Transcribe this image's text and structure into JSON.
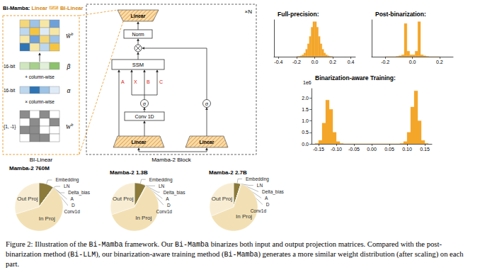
{
  "bi_linear": {
    "header": {
      "prefix": "Bi-Mamba:",
      "source": "Linear",
      "target": "BI-Linear"
    },
    "scaled_weight": {
      "symbol": "W̃",
      "superscript": "b"
    },
    "beta": {
      "precision": "16-bit",
      "symbol": "β",
      "operation": "+ column-wise"
    },
    "alpha": {
      "precision": "16-bit",
      "symbol": "α",
      "operation": "× column-wise"
    },
    "binary_weight": {
      "values_label": "{1, -1}",
      "symbol": "W",
      "superscript": "b",
      "matrix": [
        [
          1,
          -1,
          1,
          -1
        ],
        [
          -1,
          1,
          -1,
          1
        ],
        [
          1,
          1,
          -1,
          -1
        ],
        [
          -1,
          1,
          1,
          -1
        ]
      ]
    },
    "label": "BI-Linear"
  },
  "mamba_block": {
    "out_linear": "Linear",
    "norm": "Norm",
    "ssm": "SSM",
    "conv": "Conv 1D",
    "conv_activation": "σ",
    "gate_activation": "σ",
    "ssm_inputs": [
      "A",
      "X",
      "B",
      "C"
    ],
    "in_linear": "Linear",
    "gate_linear": "Linear",
    "repeat": "×N",
    "label": "Mamba-2 Block"
  },
  "chart_data": [
    {
      "type": "pie",
      "title": "Mamba-2 760M",
      "categories": [
        "Embedding",
        "LN",
        "Delta_bias",
        "A",
        "D",
        "Conv1d",
        "In Proj",
        "Out Proj"
      ],
      "values": [
        10.1,
        0.1,
        0.02,
        0.02,
        0.02,
        0.4,
        59.6,
        29.7
      ],
      "colors": [
        "#8b7a3a",
        "#b5a35c",
        "#c9b56c",
        "#d8c48a",
        "#e0cf9c",
        "#a89450",
        "#f2e0b4",
        "#f8edd2"
      ]
    },
    {
      "type": "pie",
      "title": "Mamba-2 1.3B",
      "categories": [
        "Embedding",
        "LN",
        "Delta_bias",
        "A",
        "D",
        "Conv1d",
        "In Proj",
        "Out Proj"
      ],
      "values": [
        7.8,
        0.1,
        0.02,
        0.02,
        0.02,
        0.3,
        61.5,
        30.2
      ],
      "colors": [
        "#8b7a3a",
        "#b5a35c",
        "#c9b56c",
        "#d8c48a",
        "#e0cf9c",
        "#a89450",
        "#f2e0b4",
        "#f8edd2"
      ]
    },
    {
      "type": "pie",
      "title": "Mamba-2 2.7B",
      "categories": [
        "Embedding",
        "LN",
        "Delta_bias",
        "A",
        "D",
        "Conv1d",
        "In Proj",
        "Out Proj"
      ],
      "values": [
        4.8,
        0.1,
        0.02,
        0.02,
        0.02,
        0.3,
        63.5,
        31.2
      ],
      "colors": [
        "#8b7a3a",
        "#b5a35c",
        "#c9b56c",
        "#d8c48a",
        "#e0cf9c",
        "#a89450",
        "#f2e0b4",
        "#f8edd2"
      ]
    },
    {
      "type": "histogram",
      "title": "Full-precision:",
      "bins": [
        -0.2,
        -0.18,
        -0.16,
        -0.14,
        -0.12,
        -0.1,
        -0.08,
        -0.06,
        -0.04,
        -0.02,
        0,
        0.02,
        0.04,
        0.06,
        0.08,
        0.1,
        0.12,
        0.14,
        0.16,
        0.18,
        0.2
      ],
      "values": [
        0.01,
        0.02,
        0.05,
        0.1,
        0.2,
        0.4,
        0.7,
        1.1,
        1.6,
        1.9,
        1.9,
        1.6,
        1.1,
        0.7,
        0.4,
        0.2,
        0.1,
        0.05,
        0.02,
        0.01
      ],
      "color": "#f4a62a",
      "xlim": [
        -0.45,
        0.45
      ],
      "xticks": [
        -0.4,
        -0.2,
        {
          "value": 0,
          "label": "0.0"
        },
        0.2,
        0.4
      ],
      "ylim": [
        0,
        2
      ],
      "grid": false,
      "tick_labels": "x"
    },
    {
      "type": "histogram",
      "title": "Post-binarization:",
      "bins": [
        -0.2,
        -0.18,
        -0.16,
        -0.14,
        -0.12,
        -0.1,
        -0.08,
        -0.06,
        -0.04,
        -0.02,
        0,
        0.02,
        0.04,
        0.06,
        0.08,
        0.1,
        0.12,
        0.14,
        0.16,
        0.18,
        0.2
      ],
      "values": [
        0,
        0,
        0,
        0,
        0.02,
        0.05,
        0.1,
        1.8,
        0.3,
        0.1,
        0.1,
        0.3,
        1.9,
        0.1,
        0.05,
        0.02,
        0,
        0,
        0,
        0
      ],
      "color": "#f4a62a",
      "xlim": [
        -0.3,
        0.3
      ],
      "xticks": [
        -0.2,
        {
          "value": 0,
          "label": "0.0"
        },
        0.2
      ],
      "ylim": [
        0,
        2
      ],
      "grid": false,
      "tick_labels": "x"
    },
    {
      "type": "histogram",
      "title": "Binarization-aware Training:",
      "annotation": "1e6",
      "bins": [
        -0.16,
        -0.15,
        -0.14,
        -0.13,
        -0.12,
        -0.11,
        -0.1,
        -0.09,
        -0.08,
        -0.07,
        -0.06,
        -0.05,
        -0.04,
        -0.03,
        -0.02,
        -0.01,
        0,
        0.01,
        0.02,
        0.03,
        0.04,
        0.05,
        0.06,
        0.07,
        0.08,
        0.09,
        0.1,
        0.11,
        0.12,
        0.13,
        0.14,
        0.15,
        0.16
      ],
      "values": [
        0.02,
        0.15,
        0.9,
        1.9,
        1.5,
        0.5,
        0.1,
        0.02,
        0,
        0,
        0,
        0,
        0,
        0,
        0,
        0,
        0,
        0,
        0,
        0,
        0,
        0,
        0,
        0,
        0.02,
        0.1,
        0.5,
        1.6,
        2.3,
        1.0,
        0.15,
        0.02
      ],
      "color": "#f4a62a",
      "xlim": [
        -0.17,
        0.17
      ],
      "xticks": [
        -0.15,
        {
          "value": -0.1,
          "label": "-0.10"
        },
        -0.05,
        {
          "value": 0,
          "label": "0.00"
        },
        0.05,
        {
          "value": 0.1,
          "label": "0.10"
        },
        0.15
      ],
      "ylim": [
        0,
        2.4
      ],
      "yticks": [
        {
          "value": 0,
          "label": "0.0"
        },
        0.5,
        {
          "value": 1,
          "label": "1.0"
        },
        1.5,
        {
          "value": 2,
          "label": "2.0"
        }
      ],
      "grid": false,
      "tick_labels": true
    }
  ],
  "caption": [
    {
      "text": "Figure 2: Illustration of the "
    },
    {
      "text": "Bi-Mamba",
      "code": true
    },
    {
      "text": " framework. Our "
    },
    {
      "text": "Bi-Mamba",
      "code": true
    },
    {
      "text": " binarizes both input and output projection matrices. Compared with the post-binarization method ("
    },
    {
      "text": "Bi-LLM",
      "code": true
    },
    {
      "text": "), our binarization-aware training method ("
    },
    {
      "text": "Bi-Mamba",
      "code": true
    },
    {
      "text": ") generates a more similar weight distribution (after scaling) on each part."
    }
  ]
}
